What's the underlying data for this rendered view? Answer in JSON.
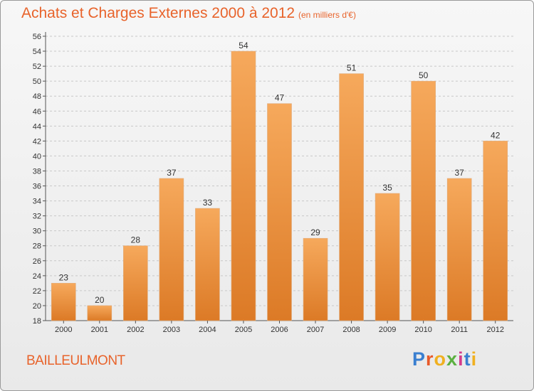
{
  "header": {
    "title": "Achats et Charges Externes 2000 à 2012",
    "subtitle": "(en milliers d'€)"
  },
  "footer": {
    "commune": "BAILLEULMONT",
    "logo_letters": [
      "P",
      "r",
      "o",
      "x",
      "i",
      "t",
      "i"
    ]
  },
  "colors": {
    "accent": "#e8632b",
    "bar_top": "#f6a95c",
    "bar_bottom": "#dc7a26",
    "logo": [
      "#3a7fd0",
      "#e85a2a",
      "#f0b020",
      "#5bb040",
      "#d43c8c",
      "#3a7fd0",
      "#f0b020"
    ]
  },
  "chart_data": {
    "type": "bar",
    "categories": [
      "2000",
      "2001",
      "2002",
      "2003",
      "2004",
      "2005",
      "2006",
      "2007",
      "2008",
      "2009",
      "2010",
      "2011",
      "2012"
    ],
    "values": [
      23,
      20,
      28,
      37,
      33,
      54,
      47,
      29,
      51,
      35,
      50,
      37,
      42
    ],
    "ylim": [
      18,
      56
    ],
    "yticks": [
      "18",
      "20",
      "22",
      "24",
      "26",
      "28",
      "30",
      "32",
      "34",
      "36",
      "38",
      "40",
      "42",
      "44",
      "46",
      "48",
      "50",
      "52",
      "54",
      "56"
    ],
    "grid": true,
    "legend": "none"
  }
}
